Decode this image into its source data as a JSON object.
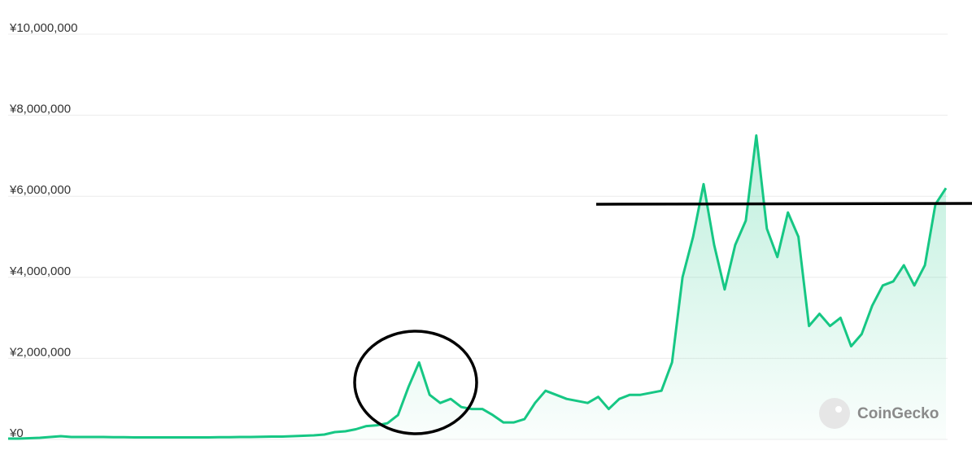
{
  "chart_data": {
    "type": "line",
    "color": "#16c784",
    "values": [
      20000,
      20000,
      30000,
      40000,
      60000,
      80000,
      60000,
      60000,
      60000,
      60000,
      55000,
      55000,
      50000,
      50000,
      50000,
      50000,
      50000,
      50000,
      50000,
      50000,
      55000,
      55000,
      60000,
      60000,
      65000,
      70000,
      70000,
      80000,
      90000,
      100000,
      120000,
      180000,
      200000,
      250000,
      330000,
      350000,
      400000,
      600000,
      1300000,
      1900000,
      1100000,
      900000,
      1000000,
      800000,
      750000,
      750000,
      600000,
      420000,
      420000,
      500000,
      900000,
      1200000,
      1100000,
      1000000,
      950000,
      900000,
      1050000,
      750000,
      1000000,
      1100000,
      1100000,
      1150000,
      1200000,
      1900000,
      4000000,
      5000000,
      6300000,
      4800000,
      3700000,
      4800000,
      5400000,
      7500000,
      5200000,
      4500000,
      5600000,
      5000000,
      2800000,
      3100000,
      2800000,
      3000000,
      2300000,
      2600000,
      3300000,
      3800000,
      3900000,
      4300000,
      3800000,
      4300000,
      5800000,
      6200000
    ],
    "ylim": [
      0,
      10000000
    ],
    "yticks": [
      {
        "value": 0,
        "label": "¥0"
      },
      {
        "value": 2000000,
        "label": "¥2,000,000"
      },
      {
        "value": 4000000,
        "label": "¥4,000,000"
      },
      {
        "value": 6000000,
        "label": "¥6,000,000"
      },
      {
        "value": 8000000,
        "label": "¥8,000,000"
      },
      {
        "value": 10000000,
        "label": "¥10,000,000"
      }
    ],
    "grid": true,
    "watermark": "CoinGecko"
  }
}
